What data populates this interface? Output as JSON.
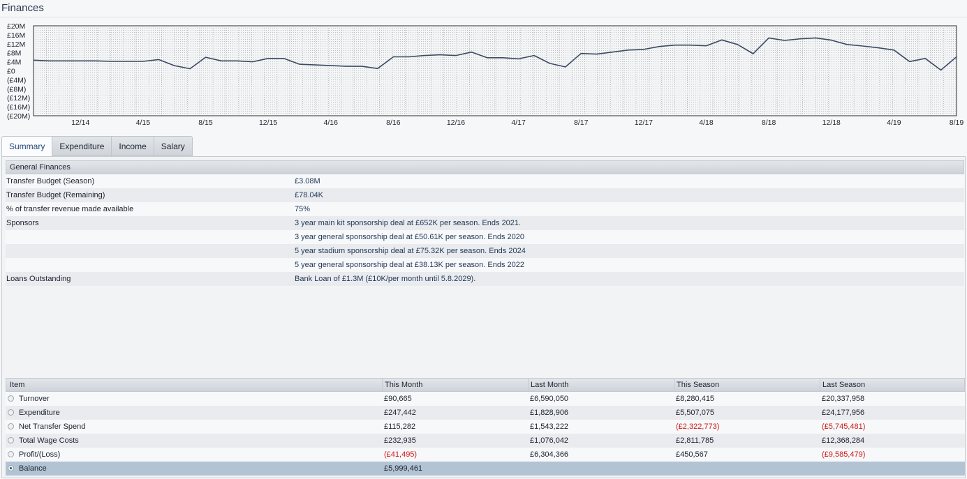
{
  "page_title": "Finances",
  "chart_data": {
    "type": "line",
    "title": "",
    "xlabel": "",
    "ylabel": "",
    "ylim": [
      -20,
      20
    ],
    "y_ticks": [
      "£20M",
      "£16M",
      "£12M",
      "£8M",
      "£4M",
      "£0",
      "(£4M)",
      "(£8M)",
      "(£12M)",
      "(£16M)",
      "(£20M)"
    ],
    "x_ticks": [
      {
        "label": "12/14",
        "month": 3
      },
      {
        "label": "4/15",
        "month": 7
      },
      {
        "label": "8/15",
        "month": 11
      },
      {
        "label": "12/15",
        "month": 15
      },
      {
        "label": "4/16",
        "month": 19
      },
      {
        "label": "8/16",
        "month": 23
      },
      {
        "label": "12/16",
        "month": 27
      },
      {
        "label": "4/17",
        "month": 31
      },
      {
        "label": "8/17",
        "month": 35
      },
      {
        "label": "12/17",
        "month": 39
      },
      {
        "label": "4/18",
        "month": 43
      },
      {
        "label": "8/18",
        "month": 47
      },
      {
        "label": "12/18",
        "month": 51
      },
      {
        "label": "4/19",
        "month": 55
      },
      {
        "label": "8/19",
        "month": 59
      }
    ],
    "series": [
      {
        "values": [
          4.7,
          4.4,
          4.4,
          4.4,
          4.4,
          4.2,
          4.2,
          4.2,
          5.0,
          2.3,
          0.9,
          6.0,
          4.4,
          4.4,
          4.0,
          5.5,
          5.5,
          2.9,
          2.6,
          2.3,
          2.0,
          2.0,
          1.0,
          6.2,
          6.2,
          6.8,
          7.1,
          6.8,
          8.3,
          5.8,
          5.8,
          5.3,
          6.8,
          3.3,
          1.7,
          7.7,
          7.4,
          8.3,
          9.2,
          9.5,
          10.8,
          11.4,
          11.4,
          11.1,
          13.7,
          11.7,
          7.6,
          14.6,
          13.5,
          14.2,
          14.6,
          13.6,
          11.7,
          11.0,
          10.2,
          9.2,
          4.1,
          5.5,
          0.3,
          6.2
        ]
      }
    ],
    "line_color": "#3a4a63",
    "grid": true
  },
  "tabs": [
    {
      "label": "Summary",
      "active": true
    },
    {
      "label": "Expenditure",
      "active": false
    },
    {
      "label": "Income",
      "active": false
    },
    {
      "label": "Salary",
      "active": false
    }
  ],
  "general": {
    "header": "General Finances",
    "rows": [
      {
        "label": "Transfer Budget (Season)",
        "value": "£3.08M"
      },
      {
        "label": "Transfer Budget (Remaining)",
        "value": "£78.04K"
      },
      {
        "label": "% of transfer revenue made available",
        "value": "75%"
      },
      {
        "label": "Sponsors",
        "value": "3 year main kit sponsorship deal at £652K per season. Ends 2021."
      },
      {
        "label": "",
        "value": "3 year general sponsorship deal at £50.61K per season. Ends 2020"
      },
      {
        "label": "",
        "value": "5 year stadium sponsorship deal at £75.32K per season. Ends 2024"
      },
      {
        "label": "",
        "value": "5 year general sponsorship deal at £38.13K per season. Ends 2022"
      },
      {
        "label": "Loans Outstanding",
        "value": "Bank Loan of £1.3M (£10K/per month until 5.8.2029)."
      }
    ]
  },
  "table": {
    "columns": [
      "Item",
      "This Month",
      "Last Month",
      "This Season",
      "Last Season"
    ],
    "rows": [
      {
        "item": "Turnover",
        "cells": [
          "£90,665",
          "£6,590,050",
          "£8,280,415",
          "£20,337,958"
        ],
        "neg": [
          false,
          false,
          false,
          false
        ],
        "selected": false
      },
      {
        "item": "Expenditure",
        "cells": [
          "£247,442",
          "£1,828,906",
          "£5,507,075",
          "£24,177,956"
        ],
        "neg": [
          false,
          false,
          false,
          false
        ],
        "selected": false
      },
      {
        "item": "Net Transfer Spend",
        "cells": [
          "£115,282",
          "£1,543,222",
          "(£2,322,773)",
          "(£5,745,481)"
        ],
        "neg": [
          false,
          false,
          true,
          true
        ],
        "selected": false
      },
      {
        "item": "Total Wage Costs",
        "cells": [
          "£232,935",
          "£1,076,042",
          "£2,811,785",
          "£12,368,284"
        ],
        "neg": [
          false,
          false,
          false,
          false
        ],
        "selected": false
      },
      {
        "item": "Profit/(Loss)",
        "cells": [
          "(£41,495)",
          "£6,304,366",
          "£450,567",
          "(£9,585,479)"
        ],
        "neg": [
          true,
          false,
          false,
          true
        ],
        "selected": false
      },
      {
        "item": "Balance",
        "cells": [
          "£5,999,461",
          "",
          "",
          ""
        ],
        "neg": [
          false,
          false,
          false,
          false
        ],
        "selected": true
      }
    ]
  }
}
